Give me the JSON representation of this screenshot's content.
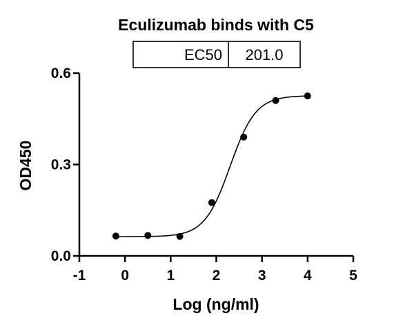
{
  "chart_data": {
    "type": "scatter",
    "title": "Eculizumab binds with C5",
    "xlabel": "Log (ng/ml)",
    "ylabel": "OD450",
    "xlim": [
      -1,
      5
    ],
    "ylim": [
      0,
      0.6
    ],
    "xticks": [
      -1,
      0,
      1,
      2,
      3,
      4,
      5
    ],
    "yticks": [
      0.0,
      0.3,
      0.6
    ],
    "xtick_labels": [
      "-1",
      "0",
      "1",
      "2",
      "3",
      "4",
      "5"
    ],
    "ytick_labels": [
      "0.0",
      "0.3",
      "0.6"
    ],
    "points": [
      {
        "x": -0.2,
        "y": 0.065
      },
      {
        "x": 0.5,
        "y": 0.067
      },
      {
        "x": 1.2,
        "y": 0.064
      },
      {
        "x": 1.9,
        "y": 0.175
      },
      {
        "x": 2.6,
        "y": 0.39
      },
      {
        "x": 3.3,
        "y": 0.51
      },
      {
        "x": 4.0,
        "y": 0.525
      }
    ],
    "fit": {
      "model": "4PL",
      "bottom": 0.063,
      "top": 0.526,
      "logEC50": 2.303,
      "hill": 1.55,
      "x_range": [
        -0.2,
        4.0
      ]
    },
    "annotation": {
      "label": "EC50",
      "value": "201.0"
    }
  }
}
